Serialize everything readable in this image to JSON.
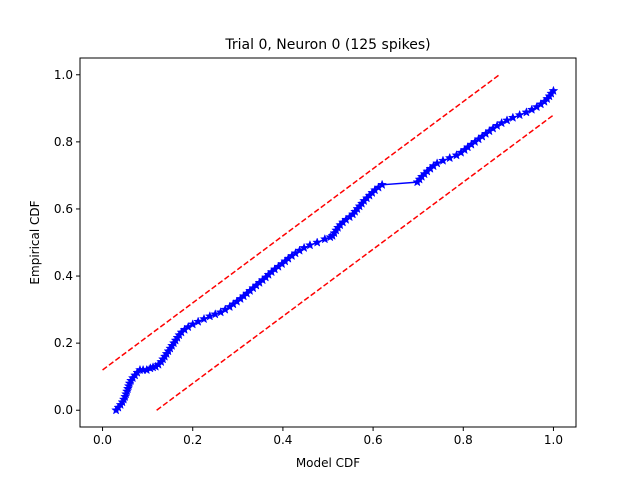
{
  "chart_data": {
    "type": "line",
    "title": "Trial 0, Neuron 0 (125 spikes)",
    "xlabel": "Model CDF",
    "ylabel": "Empirical CDF",
    "xlim": [
      -0.05,
      1.05
    ],
    "ylim": [
      -0.05,
      1.05
    ],
    "xticks": [
      0.0,
      0.2,
      0.4,
      0.6,
      0.8,
      1.0
    ],
    "yticks": [
      0.0,
      0.2,
      0.4,
      0.6,
      0.8,
      1.0
    ],
    "xtick_labels": [
      "0.0",
      "0.2",
      "0.4",
      "0.6",
      "0.8",
      "1.0"
    ],
    "ytick_labels": [
      "0.0",
      "0.2",
      "0.4",
      "0.6",
      "0.8",
      "1.0"
    ],
    "grid": false,
    "series": [
      {
        "style": "solid line with star markers",
        "color": "#0000ff",
        "x": [
          0.03,
          0.035,
          0.04,
          0.044,
          0.047,
          0.05,
          0.052,
          0.054,
          0.056,
          0.058,
          0.06,
          0.063,
          0.067,
          0.072,
          0.077,
          0.083,
          0.09,
          0.098,
          0.106,
          0.112,
          0.118,
          0.124,
          0.13,
          0.134,
          0.138,
          0.142,
          0.146,
          0.15,
          0.154,
          0.158,
          0.162,
          0.166,
          0.17,
          0.175,
          0.182,
          0.19,
          0.2,
          0.212,
          0.225,
          0.238,
          0.25,
          0.262,
          0.272,
          0.282,
          0.29,
          0.298,
          0.306,
          0.313,
          0.32,
          0.327,
          0.334,
          0.341,
          0.348,
          0.355,
          0.362,
          0.368,
          0.375,
          0.382,
          0.39,
          0.398,
          0.405,
          0.412,
          0.42,
          0.428,
          0.437,
          0.447,
          0.46,
          0.476,
          0.493,
          0.505,
          0.51,
          0.514,
          0.518,
          0.522,
          0.527,
          0.533,
          0.54,
          0.548,
          0.555,
          0.56,
          0.565,
          0.57,
          0.575,
          0.58,
          0.586,
          0.592,
          0.598,
          0.604,
          0.612,
          0.62,
          0.698,
          0.703,
          0.708,
          0.714,
          0.72,
          0.727,
          0.734,
          0.742,
          0.755,
          0.77,
          0.785,
          0.795,
          0.803,
          0.81,
          0.818,
          0.826,
          0.834,
          0.842,
          0.85,
          0.858,
          0.866,
          0.875,
          0.885,
          0.897,
          0.91,
          0.925,
          0.94,
          0.952,
          0.963,
          0.972,
          0.98,
          0.986,
          0.991,
          0.995,
          1.0
        ],
        "y": [
          0.0,
          0.008,
          0.016,
          0.024,
          0.032,
          0.04,
          0.048,
          0.056,
          0.064,
          0.072,
          0.08,
          0.088,
          0.096,
          0.104,
          0.112,
          0.12,
          0.12,
          0.12,
          0.125,
          0.128,
          0.13,
          0.136,
          0.144,
          0.152,
          0.16,
          0.168,
          0.176,
          0.184,
          0.192,
          0.2,
          0.208,
          0.216,
          0.224,
          0.232,
          0.24,
          0.248,
          0.256,
          0.264,
          0.272,
          0.28,
          0.286,
          0.292,
          0.3,
          0.308,
          0.316,
          0.324,
          0.332,
          0.34,
          0.348,
          0.356,
          0.364,
          0.372,
          0.38,
          0.388,
          0.396,
          0.404,
          0.412,
          0.42,
          0.428,
          0.436,
          0.444,
          0.452,
          0.46,
          0.468,
          0.476,
          0.484,
          0.492,
          0.5,
          0.51,
          0.516,
          0.52,
          0.528,
          0.536,
          0.544,
          0.552,
          0.56,
          0.568,
          0.576,
          0.584,
          0.592,
          0.6,
          0.608,
          0.616,
          0.624,
          0.632,
          0.64,
          0.648,
          0.656,
          0.664,
          0.672,
          0.68,
          0.688,
          0.696,
          0.704,
          0.712,
          0.72,
          0.728,
          0.736,
          0.744,
          0.752,
          0.76,
          0.768,
          0.776,
          0.784,
          0.792,
          0.8,
          0.808,
          0.816,
          0.824,
          0.832,
          0.84,
          0.848,
          0.856,
          0.864,
          0.872,
          0.88,
          0.888,
          0.896,
          0.904,
          0.912,
          0.92,
          0.928,
          0.936,
          0.944,
          0.952
        ]
      },
      {
        "style": "dashed",
        "color": "#ff0000",
        "x": [
          0.0,
          0.88
        ],
        "y": [
          0.12,
          1.0
        ]
      },
      {
        "style": "dashed",
        "color": "#ff0000",
        "x": [
          0.12,
          1.0
        ],
        "y": [
          0.0,
          0.88
        ]
      }
    ]
  }
}
